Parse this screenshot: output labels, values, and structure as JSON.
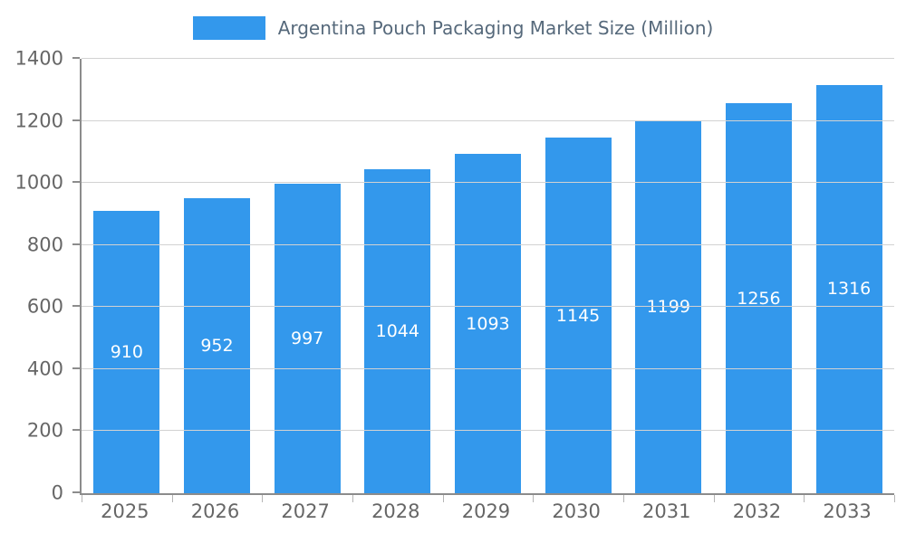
{
  "legend": {
    "title": "Argentina Pouch Packaging Market Size (Million)"
  },
  "chart_data": {
    "type": "bar",
    "title": "Argentina Pouch Packaging Market Size (Million)",
    "categories": [
      "2025",
      "2026",
      "2027",
      "2028",
      "2029",
      "2030",
      "2031",
      "2032",
      "2033"
    ],
    "values": [
      910,
      952,
      997,
      1044,
      1093,
      1145,
      1199,
      1256,
      1316
    ],
    "xlabel": "",
    "ylabel": "",
    "ylim": [
      0,
      1400
    ],
    "yticks": [
      0,
      200,
      400,
      600,
      800,
      1000,
      1200,
      1400
    ],
    "grid": true,
    "legend_position": "top",
    "bar_color": "#3398EC",
    "value_label_color": "#ffffff",
    "axis_label_color": "#666666"
  }
}
